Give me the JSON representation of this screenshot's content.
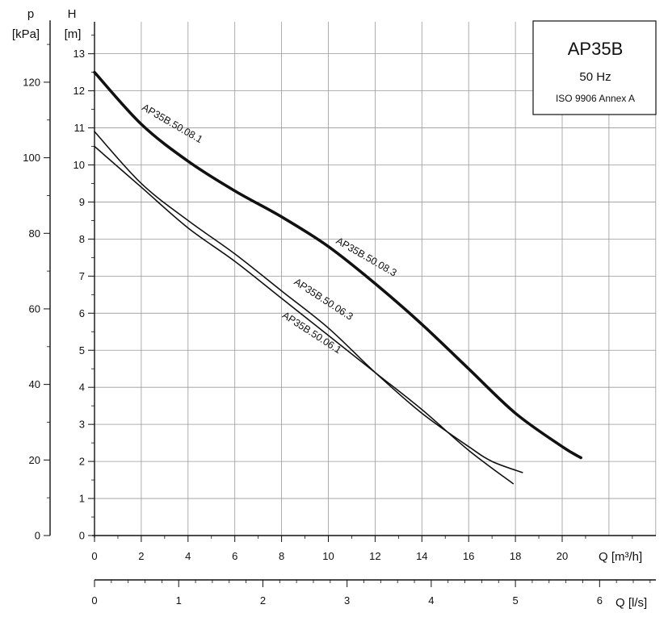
{
  "chart_data": {
    "type": "line",
    "title": "AP35B",
    "subtitle": "50 Hz",
    "note": "ISO 9906 Annex A",
    "xlabel": "Q [m³/h]",
    "ylabel": "H",
    "ylabel_unit": "[m]",
    "y2label": "p",
    "y2label_unit": "[kPa]",
    "x2label": "Q [l/s]",
    "xlim": [
      0,
      24
    ],
    "ylim": [
      0,
      14
    ],
    "x_ticks": [
      0,
      2,
      4,
      6,
      8,
      10,
      12,
      14,
      16,
      18,
      20
    ],
    "y_ticks": [
      0,
      1,
      2,
      3,
      4,
      5,
      6,
      7,
      8,
      9,
      10,
      11,
      12,
      13
    ],
    "p_ticks": [
      0,
      20,
      40,
      60,
      80,
      100,
      120
    ],
    "ls_ticks": [
      0,
      1,
      2,
      3,
      4,
      5,
      6
    ],
    "grid": true,
    "series": [
      {
        "name": "AP35B.50.08.1",
        "x": [
          0,
          2,
          4,
          6,
          8,
          10,
          12,
          14,
          16,
          18,
          20,
          20.8
        ],
        "y": [
          12.5,
          11.1,
          10.1,
          9.3,
          8.6,
          7.8,
          6.8,
          5.7,
          4.5,
          3.3,
          2.4,
          2.1
        ]
      },
      {
        "name": "AP35B.50.08.3",
        "x": [
          0,
          2,
          4,
          6,
          8,
          10,
          12,
          14,
          16,
          18,
          20,
          20.8
        ],
        "y": [
          12.5,
          11.1,
          10.1,
          9.3,
          8.6,
          7.8,
          6.8,
          5.7,
          4.5,
          3.3,
          2.4,
          2.1
        ]
      },
      {
        "name": "AP35B.50.06.3",
        "x": [
          0,
          2,
          4,
          6,
          8,
          10,
          12,
          14,
          16,
          17,
          18.3
        ],
        "y": [
          10.9,
          9.5,
          8.5,
          7.6,
          6.6,
          5.6,
          4.4,
          3.3,
          2.4,
          2.0,
          1.7
        ]
      },
      {
        "name": "AP35B.50.06.1",
        "x": [
          0,
          2,
          4,
          6,
          8,
          10,
          12,
          14,
          16,
          17.9
        ],
        "y": [
          10.5,
          9.4,
          8.3,
          7.4,
          6.4,
          5.4,
          4.4,
          3.4,
          2.3,
          1.4
        ]
      }
    ]
  }
}
